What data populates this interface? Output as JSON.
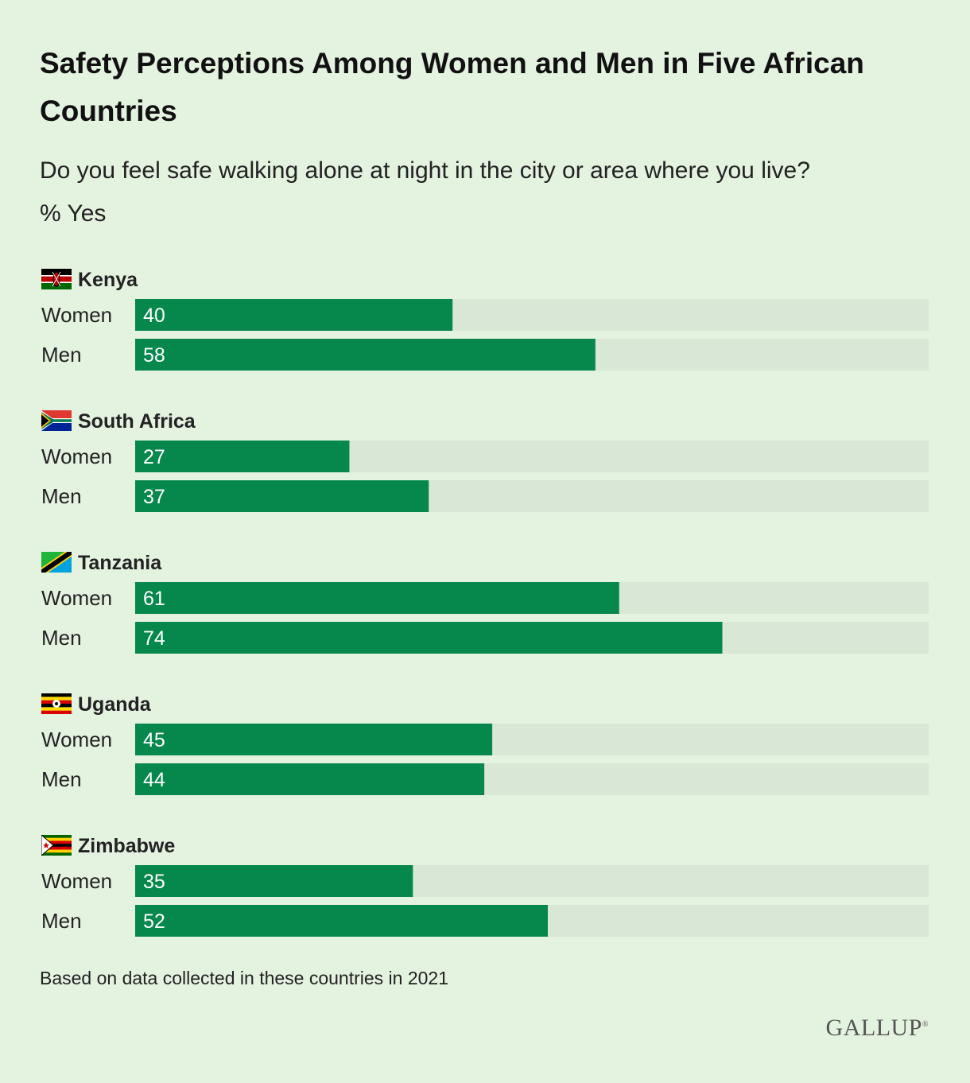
{
  "header": {
    "title": "Safety Perceptions Among Women and Men in Five African Countries",
    "question": "Do you feel safe walking alone at night in the city or area where you live?",
    "unit": "% Yes"
  },
  "footer": {
    "note": "Based on data collected in these countries in 2021",
    "brand": "GALLUP",
    "brand_mark": "®"
  },
  "colors": {
    "bar": "#06884d",
    "track": "#d9e8d6",
    "background": "#e4f2e0",
    "value_text": "#ffffff"
  },
  "chart_data": {
    "type": "bar",
    "orientation": "horizontal",
    "xlim": [
      0,
      100
    ],
    "grid": false,
    "groups": [
      {
        "country": "Kenya",
        "flag": "kenya-flag-icon",
        "rows": [
          {
            "label": "Women",
            "value": 40
          },
          {
            "label": "Men",
            "value": 58
          }
        ]
      },
      {
        "country": "South Africa",
        "flag": "south-africa-flag-icon",
        "rows": [
          {
            "label": "Women",
            "value": 27
          },
          {
            "label": "Men",
            "value": 37
          }
        ]
      },
      {
        "country": "Tanzania",
        "flag": "tanzania-flag-icon",
        "rows": [
          {
            "label": "Women",
            "value": 61
          },
          {
            "label": "Men",
            "value": 74
          }
        ]
      },
      {
        "country": "Uganda",
        "flag": "uganda-flag-icon",
        "rows": [
          {
            "label": "Women",
            "value": 45
          },
          {
            "label": "Men",
            "value": 44
          }
        ]
      },
      {
        "country": "Zimbabwe",
        "flag": "zimbabwe-flag-icon",
        "rows": [
          {
            "label": "Women",
            "value": 35
          },
          {
            "label": "Men",
            "value": 52
          }
        ]
      }
    ]
  }
}
